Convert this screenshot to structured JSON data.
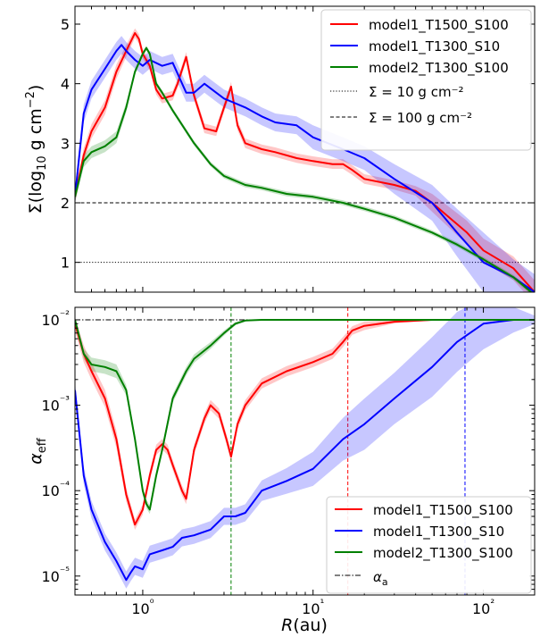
{
  "chart_data": [
    {
      "type": "line",
      "xscale": "log",
      "xlim": [
        0.4,
        200
      ],
      "ylim": [
        0.5,
        5.3
      ],
      "ylabel": "Σ(log₁₀ g cm⁻²)",
      "yticks": [
        1,
        2,
        3,
        4,
        5
      ],
      "yticklabels": [
        "1",
        "2",
        "3",
        "4",
        "5"
      ],
      "legend_loc": "upper right",
      "series": [
        {
          "name": "model1_T1500_S100",
          "color": "#ff0000",
          "x": [
            0.4,
            0.45,
            0.5,
            0.6,
            0.7,
            0.8,
            0.9,
            0.95,
            1.0,
            1.1,
            1.2,
            1.3,
            1.5,
            1.6,
            1.8,
            2.0,
            2.3,
            2.7,
            3.0,
            3.3,
            3.6,
            4.0,
            5.0,
            6.0,
            8.0,
            10.0,
            13.0,
            15.0,
            17.0,
            20.0,
            30.0,
            40.0,
            50.0,
            80.0,
            100.0,
            150.0,
            200.0
          ],
          "y": [
            2.1,
            2.8,
            3.2,
            3.6,
            4.2,
            4.55,
            4.85,
            4.75,
            4.5,
            4.3,
            3.9,
            3.75,
            3.8,
            4.0,
            4.45,
            3.8,
            3.25,
            3.2,
            3.6,
            3.95,
            3.3,
            3.0,
            2.9,
            2.85,
            2.75,
            2.7,
            2.65,
            2.65,
            2.55,
            2.4,
            2.3,
            2.2,
            2.0,
            1.5,
            1.2,
            0.9,
            0.5
          ],
          "band": [
            0.1,
            0.12,
            0.12,
            0.12,
            0.12,
            0.1,
            0.08,
            0.08,
            0.08,
            0.08,
            0.08,
            0.08,
            0.08,
            0.08,
            0.08,
            0.08,
            0.08,
            0.08,
            0.08,
            0.08,
            0.08,
            0.08,
            0.08,
            0.08,
            0.08,
            0.08,
            0.08,
            0.08,
            0.08,
            0.08,
            0.08,
            0.08,
            0.15,
            0.2,
            0.2,
            0.2,
            0.2
          ]
        },
        {
          "name": "model1_T1300_S10",
          "color": "#0000ff",
          "x": [
            0.4,
            0.45,
            0.5,
            0.6,
            0.7,
            0.75,
            0.8,
            0.9,
            1.0,
            1.1,
            1.3,
            1.5,
            1.8,
            2.0,
            2.3,
            2.7,
            3.0,
            4.0,
            5.0,
            6.0,
            8.0,
            10.0,
            15.0,
            20.0,
            30.0,
            50.0,
            70.0,
            100.0,
            150.0,
            200.0
          ],
          "y": [
            2.1,
            3.5,
            3.9,
            4.25,
            4.55,
            4.65,
            4.55,
            4.4,
            4.3,
            4.4,
            4.3,
            4.35,
            3.85,
            3.85,
            4.0,
            3.85,
            3.75,
            3.6,
            3.45,
            3.35,
            3.3,
            3.1,
            2.9,
            2.75,
            2.4,
            2.0,
            1.5,
            1.0,
            0.75,
            0.5
          ],
          "band": [
            0.15,
            0.15,
            0.15,
            0.15,
            0.15,
            0.15,
            0.15,
            0.15,
            0.15,
            0.15,
            0.15,
            0.15,
            0.15,
            0.15,
            0.15,
            0.15,
            0.15,
            0.15,
            0.15,
            0.15,
            0.15,
            0.2,
            0.2,
            0.2,
            0.25,
            0.3,
            0.4,
            0.5,
            0.3,
            0.3
          ]
        },
        {
          "name": "model2_T1300_S100",
          "color": "#008000",
          "x": [
            0.4,
            0.45,
            0.5,
            0.6,
            0.7,
            0.8,
            0.9,
            1.0,
            1.05,
            1.1,
            1.2,
            1.3,
            1.5,
            2.0,
            2.5,
            3.0,
            4.0,
            5.0,
            7.0,
            10.0,
            15.0,
            20.0,
            30.0,
            50.0,
            70.0,
            100.0,
            150.0,
            200.0
          ],
          "y": [
            2.1,
            2.7,
            2.85,
            2.95,
            3.1,
            3.6,
            4.2,
            4.5,
            4.6,
            4.5,
            4.0,
            3.85,
            3.55,
            3.0,
            2.65,
            2.45,
            2.3,
            2.25,
            2.15,
            2.1,
            2.0,
            1.9,
            1.75,
            1.5,
            1.3,
            1.05,
            0.75,
            0.45
          ],
          "band": [
            0.1,
            0.1,
            0.1,
            0.1,
            0.1,
            0.08,
            0.05,
            0.04,
            0.04,
            0.04,
            0.04,
            0.04,
            0.04,
            0.04,
            0.04,
            0.04,
            0.04,
            0.04,
            0.04,
            0.04,
            0.04,
            0.04,
            0.04,
            0.04,
            0.04,
            0.04,
            0.04,
            0.04
          ]
        }
      ],
      "hlines": [
        {
          "y": 1,
          "style": "dotted",
          "label": "Σ = 10 g cm⁻²"
        },
        {
          "y": 2,
          "style": "dashed",
          "label": "Σ = 100 g cm⁻²"
        }
      ]
    },
    {
      "type": "line",
      "xscale": "log",
      "yscale": "log",
      "xlim": [
        0.4,
        200
      ],
      "ylim": [
        6e-06,
        0.014
      ],
      "xlabel": "R(au)",
      "ylabel": "α_eff",
      "xticks": [
        1,
        10,
        100
      ],
      "xticklabels": [
        "10⁰",
        "10¹",
        "10²"
      ],
      "yticks": [
        1e-05,
        0.0001,
        0.001,
        0.01
      ],
      "yticklabels": [
        "10⁻⁵",
        "10⁻⁴",
        "10⁻³",
        "10⁻²"
      ],
      "legend_loc": "lower right",
      "series": [
        {
          "name": "model1_T1500_S100",
          "color": "#ff0000",
          "x": [
            0.4,
            0.45,
            0.5,
            0.6,
            0.7,
            0.8,
            0.9,
            1.0,
            1.1,
            1.2,
            1.3,
            1.4,
            1.5,
            1.7,
            1.8,
            2.0,
            2.3,
            2.5,
            2.8,
            3.1,
            3.3,
            3.6,
            4.0,
            5.0,
            7.0,
            10.0,
            13.0,
            15.0,
            17.0,
            20.0,
            30.0,
            50.0,
            200.0
          ],
          "y": [
            0.009,
            0.004,
            0.0025,
            0.0012,
            0.0004,
            9e-05,
            4e-05,
            6e-05,
            0.00015,
            0.0003,
            0.00035,
            0.0003,
            0.0002,
            0.0001,
            8e-05,
            0.0003,
            0.0007,
            0.001,
            0.0008,
            0.0004,
            0.00025,
            0.0006,
            0.001,
            0.0018,
            0.0025,
            0.0032,
            0.004,
            0.0055,
            0.0075,
            0.0085,
            0.0095,
            0.01,
            0.01
          ],
          "band": [
            0.08,
            0.1,
            0.1,
            0.1,
            0.1,
            0.08,
            0.06,
            0.06,
            0.06,
            0.06,
            0.06,
            0.06,
            0.06,
            0.06,
            0.06,
            0.06,
            0.06,
            0.06,
            0.06,
            0.06,
            0.06,
            0.06,
            0.06,
            0.06,
            0.06,
            0.06,
            0.06,
            0.06,
            0.05,
            0.05,
            0.02,
            0.01,
            0.01
          ]
        },
        {
          "name": "model1_T1300_S10",
          "color": "#0000ff",
          "x": [
            0.4,
            0.45,
            0.5,
            0.6,
            0.7,
            0.8,
            0.85,
            0.9,
            1.0,
            1.1,
            1.3,
            1.5,
            1.7,
            2.0,
            2.5,
            3.0,
            3.5,
            4.0,
            5.0,
            7.0,
            10.0,
            15.0,
            20.0,
            30.0,
            50.0,
            70.0,
            100.0,
            150.0,
            200.0
          ],
          "y": [
            0.0015,
            0.00015,
            6e-05,
            2.5e-05,
            1.5e-05,
            9e-06,
            1.1e-05,
            1.3e-05,
            1.2e-05,
            1.8e-05,
            2e-05,
            2.2e-05,
            2.8e-05,
            3e-05,
            3.5e-05,
            5e-05,
            5e-05,
            5.5e-05,
            0.0001,
            0.00013,
            0.00018,
            0.0004,
            0.0006,
            0.0012,
            0.0028,
            0.0055,
            0.009,
            0.01,
            0.01
          ],
          "band": [
            0.1,
            0.1,
            0.1,
            0.1,
            0.1,
            0.1,
            0.1,
            0.1,
            0.1,
            0.1,
            0.1,
            0.1,
            0.1,
            0.1,
            0.1,
            0.1,
            0.1,
            0.1,
            0.12,
            0.15,
            0.2,
            0.25,
            0.3,
            0.3,
            0.35,
            0.35,
            0.3,
            0.15,
            0.05
          ]
        },
        {
          "name": "model2_T1300_S100",
          "color": "#008000",
          "x": [
            0.4,
            0.45,
            0.5,
            0.6,
            0.7,
            0.8,
            0.9,
            1.0,
            1.05,
            1.1,
            1.2,
            1.3,
            1.5,
            1.8,
            2.0,
            2.5,
            3.0,
            3.5,
            4.0,
            5.0,
            10.0,
            200.0
          ],
          "y": [
            0.01,
            0.004,
            0.003,
            0.0028,
            0.0025,
            0.0015,
            0.0004,
            0.0001,
            7e-05,
            6e-05,
            0.00015,
            0.0003,
            0.0012,
            0.0025,
            0.0035,
            0.005,
            0.007,
            0.009,
            0.0098,
            0.01,
            0.01,
            0.01
          ],
          "band": [
            0.03,
            0.06,
            0.08,
            0.08,
            0.08,
            0.06,
            0.05,
            0.05,
            0.05,
            0.05,
            0.05,
            0.05,
            0.05,
            0.05,
            0.05,
            0.04,
            0.03,
            0.02,
            0.01,
            0.0,
            0.0,
            0.0
          ]
        }
      ],
      "hlines": [
        {
          "y": 0.01,
          "style": "dashdot",
          "label": "α_a"
        }
      ],
      "vlines": [
        {
          "x": 3.3,
          "color": "#008000",
          "style": "dashed"
        },
        {
          "x": 16.0,
          "color": "#ff0000",
          "style": "dashed"
        },
        {
          "x": 78.0,
          "color": "#0000ff",
          "style": "dashed"
        }
      ]
    }
  ]
}
